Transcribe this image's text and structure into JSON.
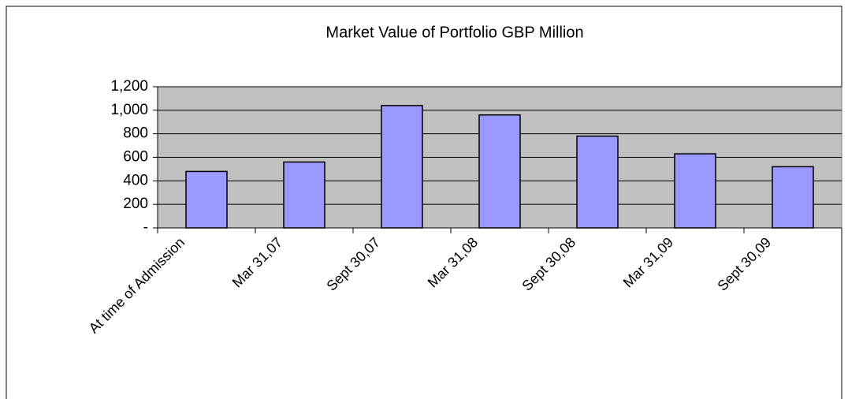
{
  "chart_data": {
    "type": "bar",
    "title": "Market Value of Portfolio GBP Million",
    "categories": [
      "At time of Admission",
      "Mar 31,07",
      "Sept 30,07",
      "Mar 31,08",
      "Sept 30,08",
      "Mar 31,09",
      "Sept 30,09"
    ],
    "values": [
      480,
      560,
      1040,
      960,
      780,
      630,
      520
    ],
    "color": "#9999ff",
    "ylim": [
      0,
      1200
    ],
    "yticks": [
      {
        "value": 0,
        "label": "-"
      },
      200,
      400,
      600,
      800,
      {
        "value": 1000,
        "label": "1,000"
      },
      {
        "value": 1200,
        "label": "1,200"
      }
    ],
    "grid": true
  }
}
